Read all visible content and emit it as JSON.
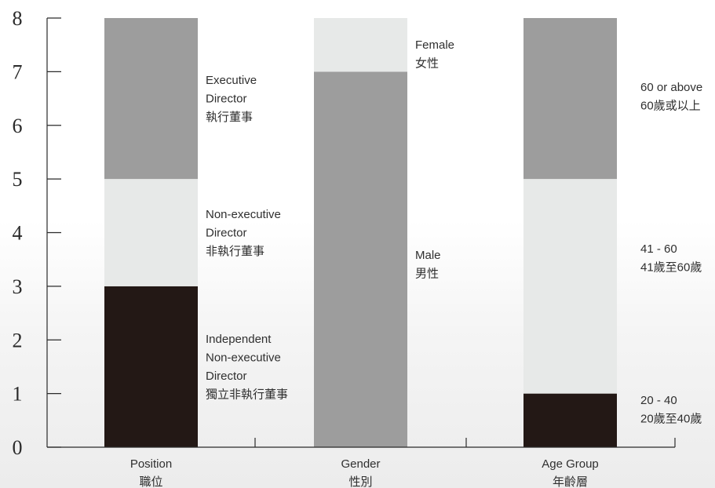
{
  "chart_data": {
    "type": "bar",
    "stacked": true,
    "ylim": [
      0,
      8
    ],
    "yticks": [
      0,
      1,
      2,
      3,
      4,
      5,
      6,
      7,
      8
    ],
    "grid": false,
    "categories": [
      {
        "label_en": "Position",
        "label_zh": "職位"
      },
      {
        "label_en": "Gender",
        "label_zh": "性別"
      },
      {
        "label_en": "Age Group",
        "label_zh": "年齡層"
      }
    ],
    "bars": [
      {
        "category": "Position",
        "segments": [
          {
            "value": 3,
            "color": "#231815",
            "label": [
              "Independent",
              "Non-executive",
              "Director",
              "獨立非執行董事"
            ]
          },
          {
            "value": 2,
            "color": "#e7e9e8",
            "label": [
              "Non-executive",
              "Director",
              "非執行董事"
            ]
          },
          {
            "value": 3,
            "color": "#9d9d9d",
            "label": [
              "Executive",
              "Director",
              "執行董事"
            ]
          }
        ]
      },
      {
        "category": "Gender",
        "segments": [
          {
            "value": 7,
            "color": "#9d9d9d",
            "label": [
              "Male",
              "男性"
            ]
          },
          {
            "value": 1,
            "color": "#e7e9e8",
            "label": [
              "Female",
              "女性"
            ]
          }
        ]
      },
      {
        "category": "Age Group",
        "segments": [
          {
            "value": 1,
            "color": "#231815",
            "label": [
              "20 - 40",
              "20歲至40歲"
            ]
          },
          {
            "value": 4,
            "color": "#e7e9e8",
            "label": [
              "41 - 60",
              "41歲至60歲"
            ]
          },
          {
            "value": 3,
            "color": "#9d9d9d",
            "label": [
              "60 or above",
              "60歲或以上"
            ]
          }
        ]
      }
    ]
  }
}
